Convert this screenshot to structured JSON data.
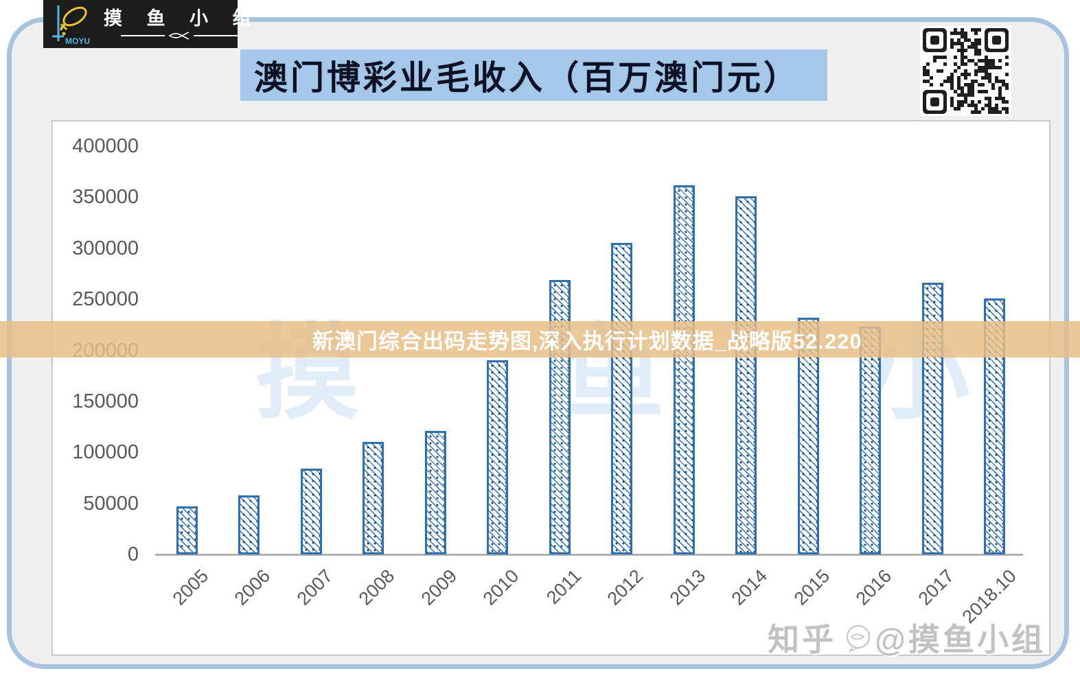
{
  "logo": {
    "brand": "MOYU",
    "name": "摸 鱼 小 组"
  },
  "header": {
    "title": "澳门博彩业毛收入（百万澳门元）"
  },
  "overlay": {
    "text": "新澳门综合出码走势图,深入执行计划数据_战略版52.220"
  },
  "watermark": {
    "chart_text": "摸 鱼 小 组",
    "credit_prefix": "知乎",
    "credit_handle": "@摸鱼小组"
  },
  "colors": {
    "bar_blue": "#2e6fad",
    "title_banner_bg": "#a5c8e9",
    "overlay_band_bg": "#e6be87",
    "frame_border": "#a6c4e0",
    "axis_text": "#585858"
  },
  "chart_data": {
    "type": "bar",
    "title": "澳门博彩业毛收入（百万澳门元）",
    "categories": [
      "2005",
      "2006",
      "2007",
      "2008",
      "2009",
      "2010",
      "2011",
      "2012",
      "2013",
      "2014",
      "2015",
      "2016",
      "2017",
      "2018.10"
    ],
    "values": [
      47000,
      58000,
      84000,
      110000,
      121000,
      190000,
      269000,
      305000,
      362000,
      351000,
      232000,
      223000,
      266000,
      251000
    ],
    "xlabel": "",
    "ylabel": "",
    "ylim": [
      0,
      400000
    ],
    "yticks": [
      0,
      50000,
      100000,
      150000,
      200000,
      250000,
      300000,
      350000,
      400000
    ],
    "grid": false,
    "legend": "none",
    "bar_style": "diagonal-hatch",
    "x_tick_rotation": -45
  }
}
